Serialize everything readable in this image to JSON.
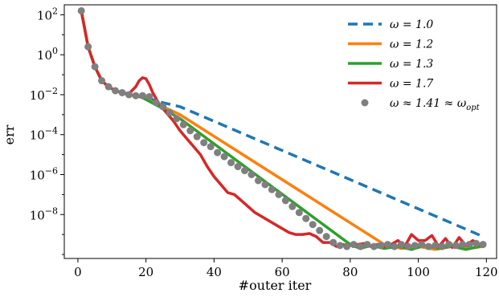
{
  "chart_data": {
    "type": "line",
    "xlabel": "#outer iter",
    "ylabel": "err",
    "xlim": [
      -4,
      123
    ],
    "ylim_log10": [
      -10.2,
      2.5
    ],
    "y_scale": "log",
    "x_ticks": [
      0,
      20,
      40,
      60,
      80,
      100,
      120
    ],
    "x_tick_labels": [
      "0",
      "20",
      "40",
      "60",
      "80",
      "100",
      "120"
    ],
    "y_ticks_log10": [
      2,
      0,
      -2,
      -4,
      -6,
      -8
    ],
    "y_tick_labels": [
      {
        "base": "10",
        "exp": "2"
      },
      {
        "base": "10",
        "exp": "0"
      },
      {
        "base": "10",
        "exp": "−2"
      },
      {
        "base": "10",
        "exp": "−4"
      },
      {
        "base": "10",
        "exp": "−6"
      },
      {
        "base": "10",
        "exp": "−8"
      }
    ],
    "grid": false,
    "legend_position": "top-right",
    "series": [
      {
        "name": "ω = 1.0",
        "color": "#1f77b4",
        "style": "dashed",
        "x": [
          1,
          3,
          5,
          7,
          9,
          11,
          13,
          15,
          17,
          19,
          25,
          30,
          119
        ],
        "log10_y": [
          2.2,
          0.4,
          -0.6,
          -1.3,
          -1.6,
          -1.8,
          -1.9,
          -2.0,
          -2.05,
          -2.1,
          -2.4,
          -2.6,
          -9.1
        ]
      },
      {
        "name": "ω = 1.2",
        "color": "#ff7f0e",
        "style": "solid",
        "x": [
          1,
          3,
          5,
          7,
          9,
          11,
          13,
          15,
          17,
          19,
          25,
          30,
          90,
          95,
          100,
          105,
          110,
          115,
          119
        ],
        "log10_y": [
          2.2,
          0.4,
          -0.6,
          -1.3,
          -1.6,
          -1.8,
          -1.9,
          -2.0,
          -2.05,
          -2.15,
          -2.6,
          -3.0,
          -9.5,
          -9.7,
          -9.6,
          -9.75,
          -9.6,
          -9.7,
          -9.6
        ]
      },
      {
        "name": "ω = 1.3",
        "color": "#2ca02c",
        "style": "solid",
        "x": [
          1,
          3,
          5,
          7,
          9,
          11,
          13,
          15,
          17,
          19,
          25,
          30,
          80,
          83,
          86,
          90,
          94,
          98,
          102,
          106,
          110,
          114,
          118,
          119
        ],
        "log10_y": [
          2.2,
          0.4,
          -0.6,
          -1.3,
          -1.6,
          -1.8,
          -1.9,
          -2.0,
          -2.05,
          -2.15,
          -2.7,
          -3.2,
          -9.5,
          -9.7,
          -9.55,
          -9.7,
          -9.6,
          -9.75,
          -9.55,
          -9.7,
          -9.6,
          -9.75,
          -9.6,
          -9.55
        ]
      },
      {
        "name": "ω = 1.7",
        "color": "#d62728",
        "style": "solid",
        "x": [
          1,
          3,
          5,
          7,
          9,
          11,
          13,
          15,
          17,
          18,
          19,
          20,
          21,
          22,
          23,
          24,
          26,
          28,
          30,
          32,
          34,
          36,
          38,
          40,
          42,
          44,
          46,
          48,
          50,
          52,
          54,
          56,
          58,
          60,
          62,
          64,
          66,
          68,
          70,
          72,
          74,
          76,
          78,
          80,
          82,
          84,
          86,
          88,
          90,
          92,
          94,
          96,
          98,
          100,
          102,
          104,
          106,
          108,
          110,
          112,
          114,
          116,
          118,
          119
        ],
        "log10_y": [
          2.2,
          0.4,
          -0.6,
          -1.3,
          -1.6,
          -1.8,
          -1.9,
          -1.95,
          -1.6,
          -1.3,
          -1.15,
          -1.2,
          -1.5,
          -1.9,
          -2.2,
          -2.5,
          -2.9,
          -3.3,
          -3.8,
          -4.2,
          -4.6,
          -5.0,
          -5.6,
          -6.1,
          -6.5,
          -6.9,
          -7.0,
          -7.3,
          -7.6,
          -7.9,
          -8.1,
          -8.3,
          -8.5,
          -8.7,
          -8.9,
          -9.0,
          -9.0,
          -8.95,
          -9.1,
          -9.4,
          -9.4,
          -9.6,
          -9.5,
          -9.55,
          -9.5,
          -9.45,
          -9.6,
          -9.5,
          -9.6,
          -9.5,
          -9.3,
          -9.6,
          -9.0,
          -9.3,
          -9.3,
          -9.05,
          -9.6,
          -9.2,
          -9.65,
          -9.15,
          -9.55,
          -9.3,
          -9.5,
          -9.4
        ]
      },
      {
        "name": "ω ≈ 1.41 ≈ ω_opt",
        "color": "#7f7f7f",
        "style": "markers",
        "x": [
          1,
          3,
          5,
          7,
          9,
          11,
          13,
          15,
          17,
          19,
          21,
          23,
          25,
          27,
          29,
          31,
          33,
          35,
          37,
          39,
          41,
          43,
          45,
          47,
          49,
          51,
          53,
          55,
          57,
          59,
          61,
          63,
          65,
          67,
          69,
          71,
          73,
          75,
          77,
          79,
          81,
          83,
          85,
          87,
          89,
          91,
          93,
          95,
          97,
          99,
          101,
          103,
          105,
          107,
          109,
          111,
          113,
          115,
          117,
          119
        ],
        "log10_y": [
          2.2,
          0.4,
          -0.6,
          -1.3,
          -1.6,
          -1.8,
          -1.9,
          -2.0,
          -2.05,
          -2.05,
          -2.1,
          -2.4,
          -2.6,
          -2.9,
          -3.2,
          -3.5,
          -3.8,
          -4.1,
          -4.4,
          -4.6,
          -4.9,
          -5.1,
          -5.4,
          -5.6,
          -5.8,
          -6.0,
          -6.3,
          -6.5,
          -6.75,
          -7.0,
          -7.3,
          -7.6,
          -7.9,
          -8.2,
          -8.5,
          -8.8,
          -9.1,
          -9.4,
          -9.55,
          -9.6,
          -9.5,
          -9.6,
          -9.5,
          -9.6,
          -9.55,
          -9.5,
          -9.6,
          -9.5,
          -9.6,
          -9.55,
          -9.5,
          -9.6,
          -9.55,
          -9.6,
          -9.5,
          -9.55,
          -9.5,
          -9.5,
          -9.45,
          -9.5
        ]
      }
    ]
  }
}
